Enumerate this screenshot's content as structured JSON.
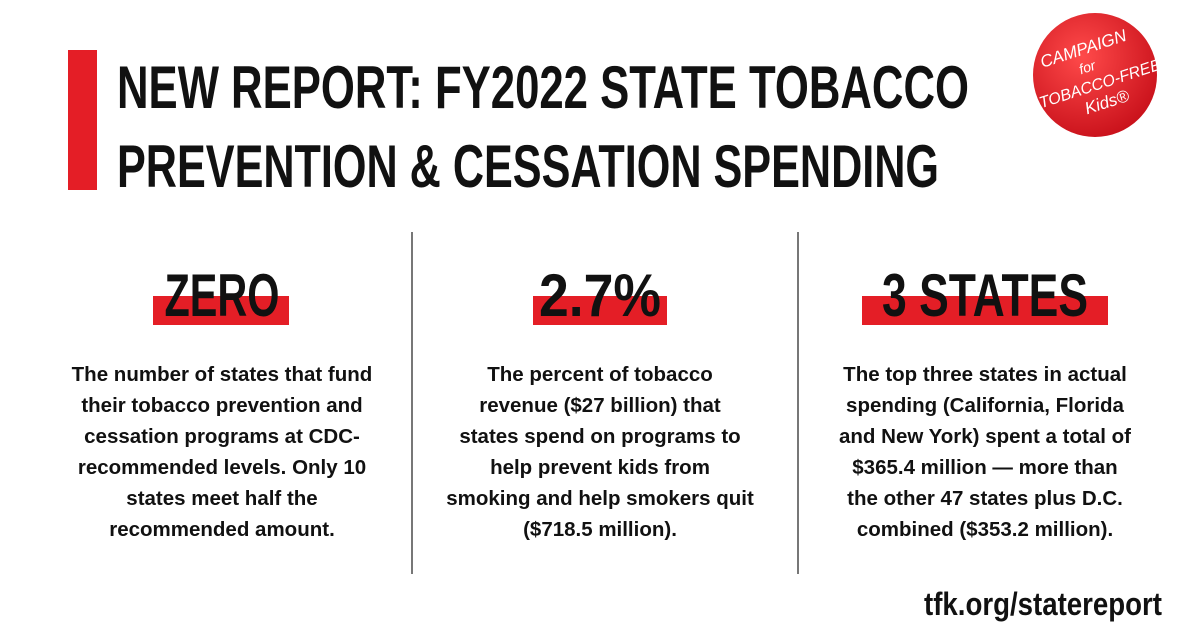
{
  "header": {
    "title_lines": [
      "NEW REPORT: FY2022 STATE TOBACCO",
      "PREVENTION & CESSATION SPENDING"
    ]
  },
  "logo": {
    "lines": [
      "CAMPAIGN",
      "for",
      "TOBACCO-FREE",
      "Kids®"
    ]
  },
  "stats": [
    {
      "headline": "ZERO",
      "body_lines": [
        "The number of states that fund",
        "their tobacco prevention and",
        "cessation programs at CDC-",
        "recommended levels. Only 10",
        "states meet half the",
        "recommended amount."
      ]
    },
    {
      "headline": "2.7%",
      "body_lines": [
        "The percent of tobacco",
        "revenue ($27 billion) that",
        "states spend on programs to",
        "help prevent kids from",
        "smoking and help smokers quit",
        "($718.5 million)."
      ]
    },
    {
      "headline": "3 STATES",
      "body_lines": [
        "The top three states in actual",
        "spending (California, Florida",
        "and New York) spent a total of",
        "$365.4 million — more than",
        "the other 47 states plus D.C.",
        "combined ($353.2 million)."
      ]
    }
  ],
  "footer": {
    "url": "tfk.org/statereport"
  }
}
